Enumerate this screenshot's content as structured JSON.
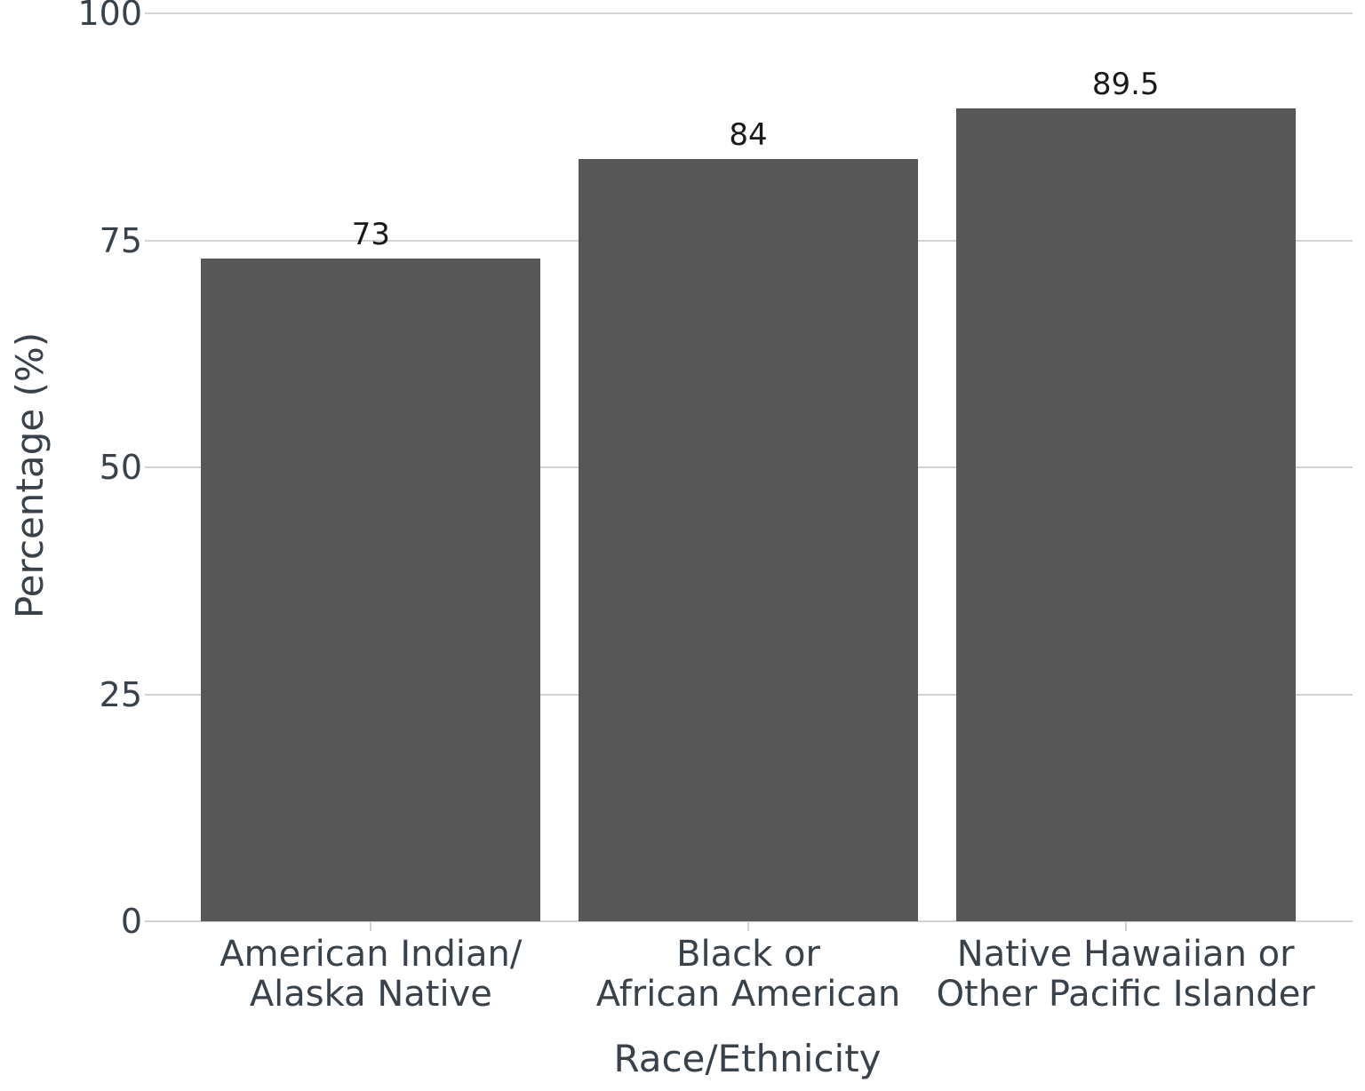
{
  "chart_data": {
    "type": "bar",
    "title": "",
    "xlabel": "Race/Ethnicity",
    "ylabel": "Percentage (%)",
    "categories": [
      [
        "American Indian/",
        "Alaska Native"
      ],
      [
        "Black or",
        "African American"
      ],
      [
        "Native Hawaiian or",
        "Other Pacific Islander"
      ]
    ],
    "values": [
      73,
      84,
      89.5
    ],
    "value_labels": [
      "73",
      "84",
      "89.5"
    ],
    "ylim": [
      0,
      100
    ],
    "yticks": [
      0,
      25,
      50,
      75,
      100
    ],
    "grid": true,
    "legend": "none",
    "colors": {
      "bar": "#575757",
      "gridline": "#d2d2d2",
      "axis_text": "#39424a",
      "value_label": "#1a1a1a",
      "background": "#ffffff"
    }
  }
}
